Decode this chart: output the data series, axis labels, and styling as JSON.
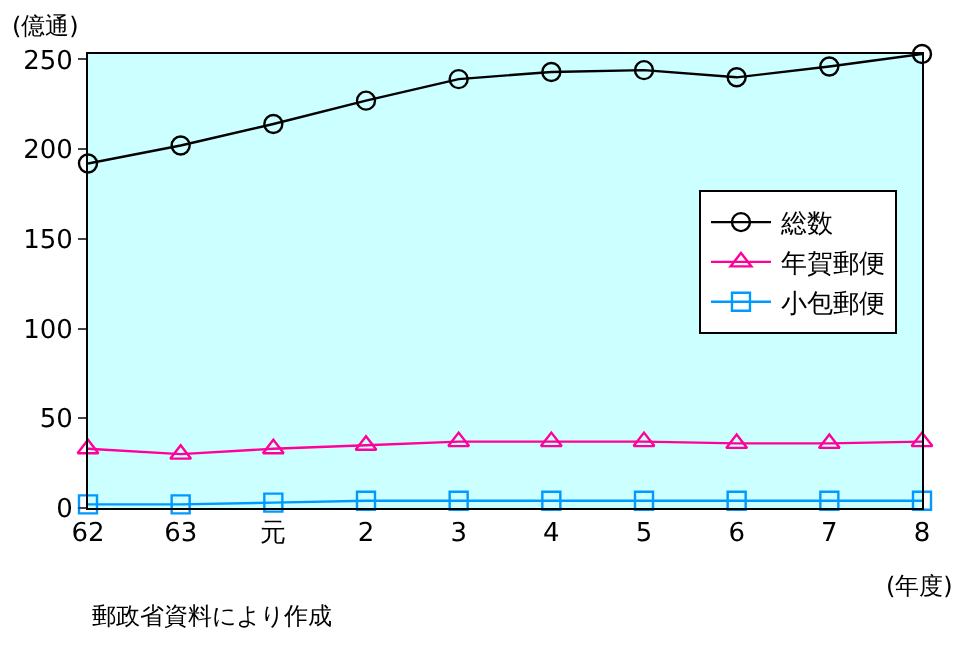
{
  "chart_data": {
    "type": "line",
    "categories": [
      "62",
      "63",
      "元",
      "2",
      "3",
      "4",
      "5",
      "6",
      "7",
      "8"
    ],
    "series": [
      {
        "name": "総数",
        "color": "#000000",
        "marker": "circle",
        "values": [
          192,
          202,
          214,
          227,
          239,
          243,
          244,
          240,
          246,
          253
        ]
      },
      {
        "name": "年賀郵便",
        "color": "#ff0099",
        "marker": "triangle",
        "values": [
          33,
          30,
          33,
          35,
          37,
          37,
          37,
          36,
          36,
          37
        ]
      },
      {
        "name": "小包郵便",
        "color": "#0099ff",
        "marker": "square",
        "values": [
          2,
          2,
          3,
          4,
          4,
          4,
          4,
          4,
          4,
          4
        ]
      }
    ],
    "ylim": [
      0,
      253
    ],
    "yticks": [
      0,
      50,
      100,
      150,
      200,
      250
    ],
    "ylabel": "(億通)",
    "xlabel": "(年度)",
    "annotations": [
      "郵政省資料により作成"
    ],
    "grid": false,
    "legend": "right",
    "line_style": "solid"
  }
}
